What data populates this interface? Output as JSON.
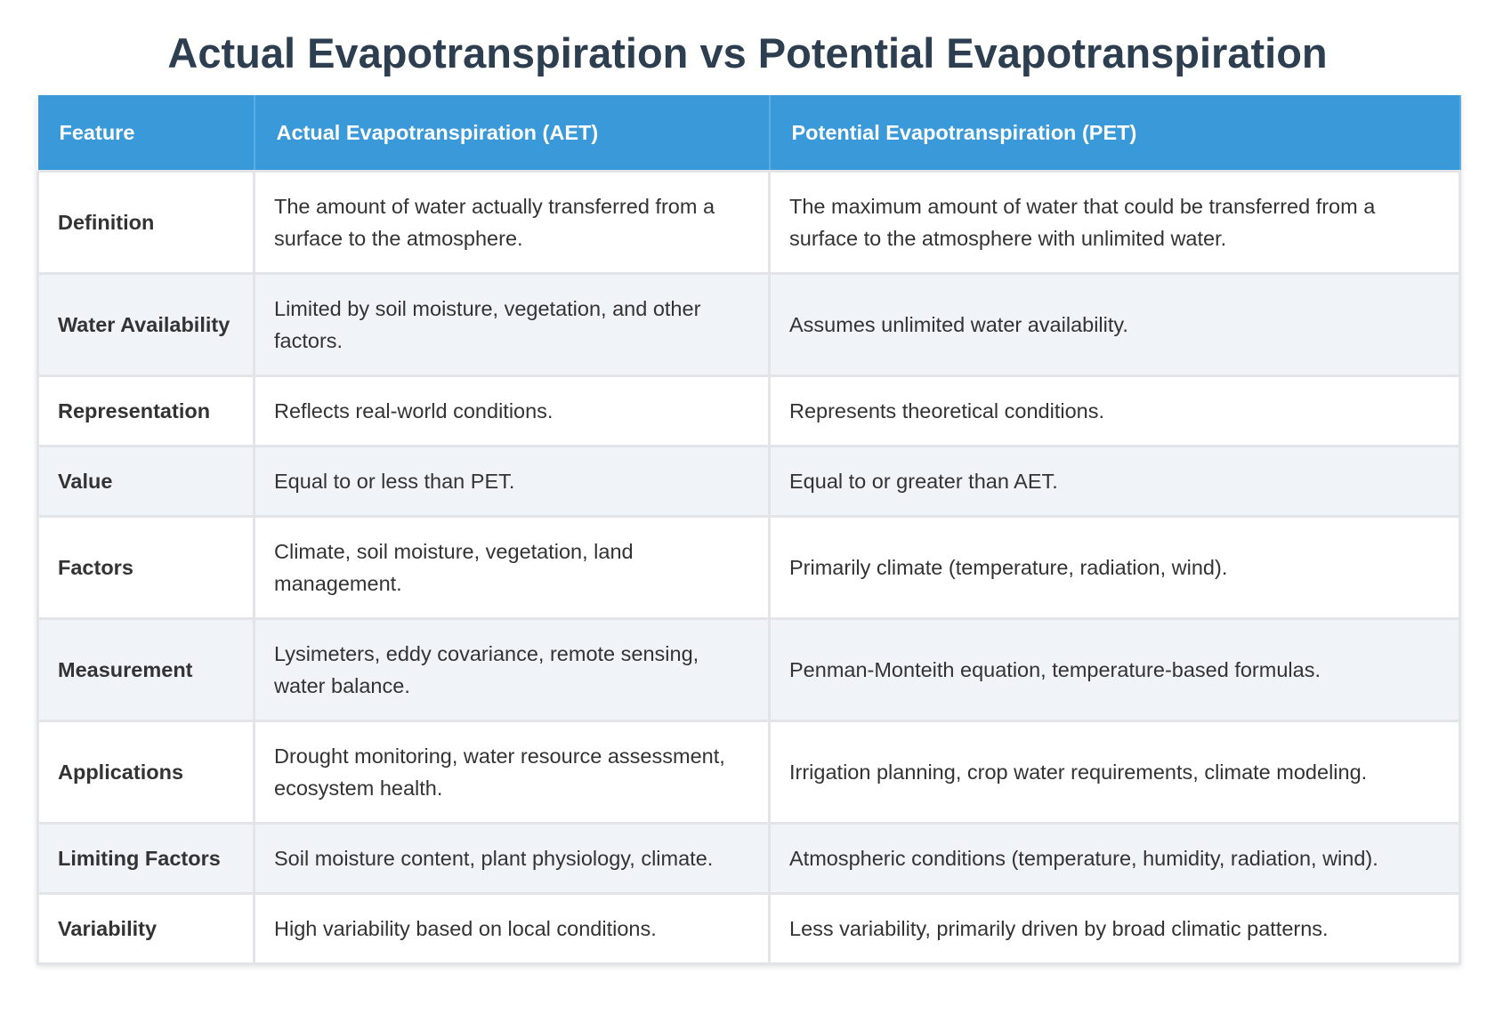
{
  "title": "Actual Evapotranspiration vs Potential Evapotranspiration",
  "table": {
    "headers": [
      "Feature",
      "Actual Evapotranspiration (AET)",
      "Potential Evapotranspiration (PET)"
    ],
    "rows": [
      [
        "Definition",
        "The amount of water actually transferred from a surface to the atmosphere.",
        "The maximum amount of water that could be transferred from a surface to the atmosphere with unlimited water."
      ],
      [
        "Water Availability",
        "Limited by soil moisture, vegetation, and other factors.",
        "Assumes unlimited water availability."
      ],
      [
        "Representation",
        "Reflects real-world conditions.",
        "Represents theoretical conditions."
      ],
      [
        "Value",
        "Equal to or less than PET.",
        "Equal to or greater than AET."
      ],
      [
        "Factors",
        "Climate, soil moisture, vegetation, land management.",
        "Primarily climate (temperature, radiation, wind)."
      ],
      [
        "Measurement",
        "Lysimeters, eddy covariance, remote sensing, water balance.",
        "Penman-Monteith equation, temperature-based formulas."
      ],
      [
        "Applications",
        "Drought monitoring, water resource assessment, ecosystem health.",
        "Irrigation planning, crop water requirements, climate modeling."
      ],
      [
        "Limiting Factors",
        "Soil moisture content, plant physiology, climate.",
        "Atmospheric conditions (temperature, humidity, radiation, wind)."
      ],
      [
        "Variability",
        "High variability based on local conditions.",
        "Less variability, primarily driven by broad climatic patterns."
      ]
    ]
  }
}
